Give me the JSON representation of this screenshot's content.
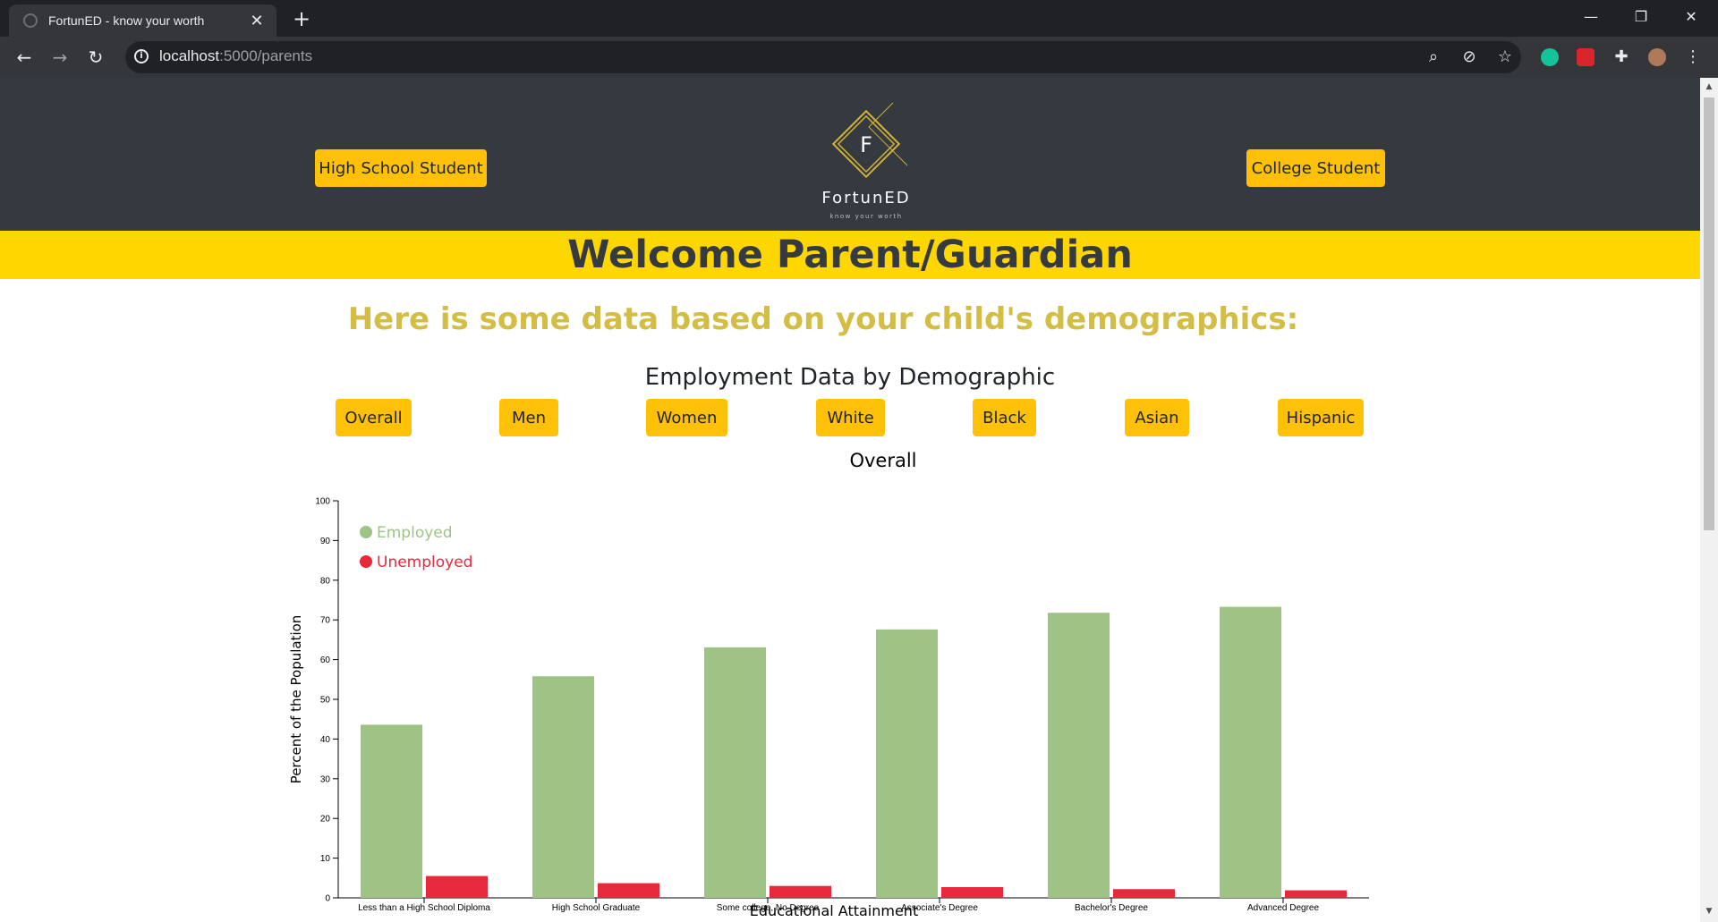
{
  "browser": {
    "tab_title": "FortunED - know your worth",
    "url_host": "localhost",
    "url_path": ":5000/parents"
  },
  "header": {
    "left_button": "High School Student",
    "right_button": "College Student",
    "logo_letter": "F",
    "logo_name": "FortunED",
    "logo_tagline": "know your worth"
  },
  "banner": {
    "title": "Welcome Parent/Guardian"
  },
  "main": {
    "subtitle": "Here is some data based on your child's demographics:",
    "chart_heading": "Employment Data by Demographic",
    "filters": [
      "Overall",
      "Men",
      "Women",
      "White",
      "Black",
      "Asian",
      "Hispanic"
    ]
  },
  "chart_data": {
    "type": "bar",
    "title": "Overall",
    "xlabel": "Educational Attainment",
    "ylabel": "Percent of the Population",
    "ylim": [
      0,
      100
    ],
    "yticks": [
      0,
      10,
      20,
      30,
      40,
      50,
      60,
      70,
      80,
      90,
      100
    ],
    "categories": [
      "Less than a High School Diploma",
      "High School Graduate",
      "Some college, No Degree",
      "Associate's Degree",
      "Bachelor's Degree",
      "Advanced Degree"
    ],
    "series": [
      {
        "name": "Employed",
        "color": "#9fc384",
        "values": [
          43.6,
          55.8,
          63.1,
          67.6,
          71.8,
          73.3
        ]
      },
      {
        "name": "Unemployed",
        "color": "#e8283b",
        "values": [
          5.5,
          3.7,
          3.0,
          2.7,
          2.2,
          1.9
        ]
      }
    ],
    "legend": "top-left",
    "grid": false
  }
}
